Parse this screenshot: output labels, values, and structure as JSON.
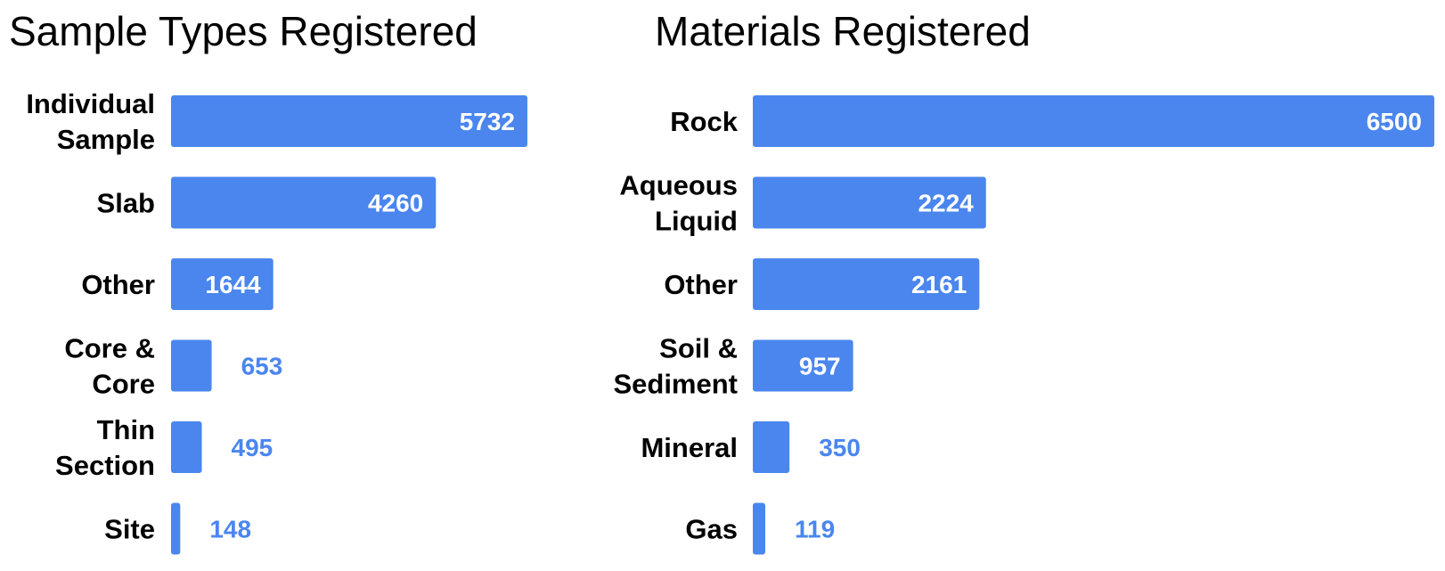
{
  "chart_data": [
    {
      "type": "bar",
      "orientation": "horizontal",
      "title": "Sample Types Registered",
      "categories": [
        [
          "Individual",
          "Sample"
        ],
        [
          "Slab"
        ],
        [
          "Other"
        ],
        [
          "Core &",
          "Core"
        ],
        [
          "Thin",
          "Section"
        ],
        [
          "Site"
        ]
      ],
      "values": [
        5732,
        4260,
        1644,
        653,
        495,
        148
      ],
      "xlim": [
        0,
        5732
      ],
      "bar_color": "#4a86ee",
      "value_labels": true,
      "grid": false
    },
    {
      "type": "bar",
      "orientation": "horizontal",
      "title": "Materials Registered",
      "categories": [
        [
          "Rock"
        ],
        [
          "Aqueous",
          "Liquid"
        ],
        [
          "Other"
        ],
        [
          "Soil &",
          "Sediment"
        ],
        [
          "Mineral"
        ],
        [
          "Gas"
        ]
      ],
      "values": [
        6500,
        2224,
        2161,
        957,
        350,
        119
      ],
      "xlim": [
        0,
        6500
      ],
      "bar_color": "#4a86ee",
      "value_labels": true,
      "grid": false
    }
  ]
}
